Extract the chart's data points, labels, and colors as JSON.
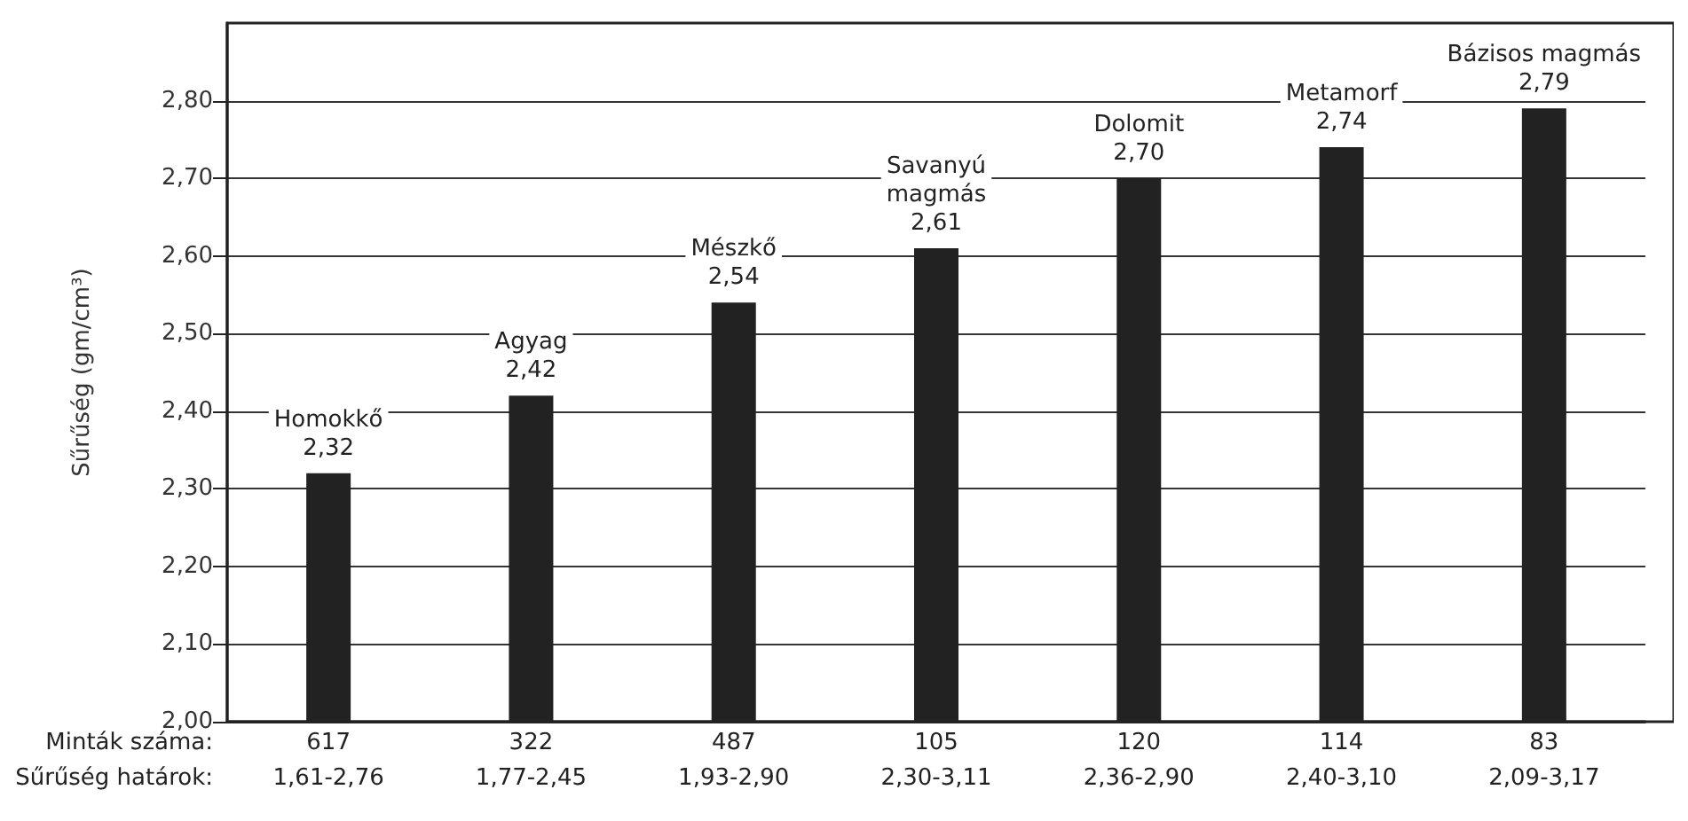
{
  "chart_data": {
    "type": "bar",
    "ylabel": "Sűrűség (gm/cm³)",
    "categories": [
      "Homokkő",
      "Agyag",
      "Mészkő",
      "Savanyú\nmagmás",
      "Dolomit",
      "Metamorf",
      "Bázisos magmás"
    ],
    "values": [
      2.32,
      2.42,
      2.54,
      2.61,
      2.7,
      2.74,
      2.79
    ],
    "value_labels": [
      "2,32",
      "2,42",
      "2,54",
      "2,61",
      "2,70",
      "2,74",
      "2,79"
    ],
    "color": "#222222",
    "ylim": [
      2.0,
      2.9
    ],
    "yticks": [
      {
        "value": 2.0,
        "label": "2,00"
      },
      {
        "value": 2.1,
        "label": "2,10"
      },
      {
        "value": 2.2,
        "label": "2,20"
      },
      {
        "value": 2.3,
        "label": "2,30"
      },
      {
        "value": 2.4,
        "label": "2,40"
      },
      {
        "value": 2.5,
        "label": "2,50"
      },
      {
        "value": 2.6,
        "label": "2,60"
      },
      {
        "value": 2.7,
        "label": "2,70"
      },
      {
        "value": 2.8,
        "label": "2,80"
      }
    ],
    "grid": "y",
    "tick_labels": "y",
    "annotations": [
      "Minták száma:",
      "617",
      "322",
      "487",
      "105",
      "120",
      "114",
      "83",
      "Sűrűség határok:",
      "1,61-2,76",
      "1,77-2,45",
      "1,93-2,90",
      "2,30-3,11",
      "2,36-2,90",
      "2,40-3,10",
      "2,09-3,17"
    ]
  }
}
